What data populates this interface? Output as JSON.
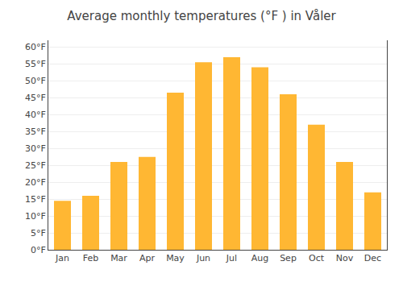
{
  "chart_data": {
    "type": "bar",
    "title": "Average monthly temperatures (°F ) in Våler",
    "categories": [
      "Jan",
      "Feb",
      "Mar",
      "Apr",
      "May",
      "Jun",
      "Jul",
      "Aug",
      "Sep",
      "Oct",
      "Nov",
      "Dec"
    ],
    "values": [
      14.5,
      16.0,
      26.0,
      27.5,
      46.5,
      55.5,
      57.0,
      54.0,
      46.0,
      37.0,
      26.0,
      17.0
    ],
    "color": "#FFB733",
    "ylim": [
      0,
      62
    ],
    "yticks": [
      {
        "value": 0,
        "label": "0°F"
      },
      {
        "value": 5,
        "label": "5°F"
      },
      {
        "value": 10,
        "label": "10°F"
      },
      {
        "value": 15,
        "label": "15°F"
      },
      {
        "value": 20,
        "label": "20°F"
      },
      {
        "value": 25,
        "label": "25°F"
      },
      {
        "value": 30,
        "label": "30°F"
      },
      {
        "value": 35,
        "label": "35°F"
      },
      {
        "value": 40,
        "label": "40°F"
      },
      {
        "value": 45,
        "label": "45°F"
      },
      {
        "value": 50,
        "label": "50°F"
      },
      {
        "value": 55,
        "label": "55°F"
      },
      {
        "value": 60,
        "label": "60°F"
      }
    ],
    "grid": true
  }
}
